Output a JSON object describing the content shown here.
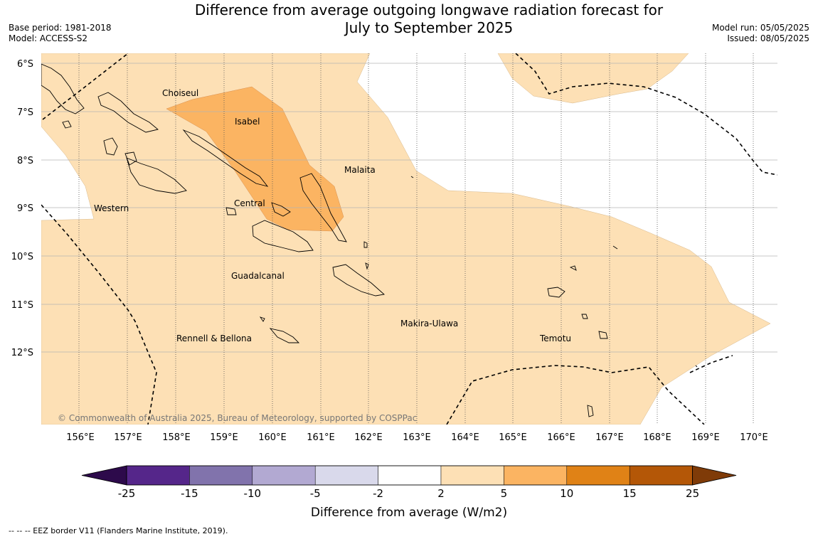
{
  "header": {
    "title_line1": "Difference from average outgoing longwave radiation forecast for",
    "title_line2": "July to September 2025",
    "base_period": "Base period: 1981-2018",
    "model": "Model: ACCESS-S2",
    "model_run": "Model run: 05/05/2025",
    "issued": "Issued: 08/05/2025"
  },
  "map": {
    "lat_labels": [
      "6°S",
      "7°S",
      "8°S",
      "9°S",
      "10°S",
      "11°S",
      "12°S"
    ],
    "lon_labels": [
      "156°E",
      "157°E",
      "158°E",
      "159°E",
      "160°E",
      "161°E",
      "162°E",
      "163°E",
      "164°E",
      "165°E",
      "166°E",
      "167°E",
      "168°E",
      "169°E",
      "170°E"
    ],
    "regions": [
      "Choiseul",
      "Isabel",
      "Malaita",
      "Western",
      "Central",
      "Guadalcanal",
      "Rennell & Bellona",
      "Makira-Ulawa",
      "Temotu"
    ],
    "copyright": "© Commonwealth of Australia 2025, Bureau of Meteorology, supported by COSPPac"
  },
  "legend": {
    "ticks": [
      "-25",
      "-15",
      "-10",
      "-5",
      "-2",
      "2",
      "5",
      "10",
      "15",
      "25"
    ],
    "colors": [
      "#55268a",
      "#8173ac",
      "#b2a9d2",
      "#d9d9eb",
      "#ffffff",
      "#fde0b5",
      "#fbb462",
      "#e08216",
      "#b45707"
    ],
    "under_color": "#2d0a4b",
    "over_color": "#7f3b08",
    "label": "Difference from average (W/m2)"
  },
  "footer": {
    "eez_note": "--  --  -- EEZ border V11 (Flanders Marine Institute, 2019)."
  }
}
